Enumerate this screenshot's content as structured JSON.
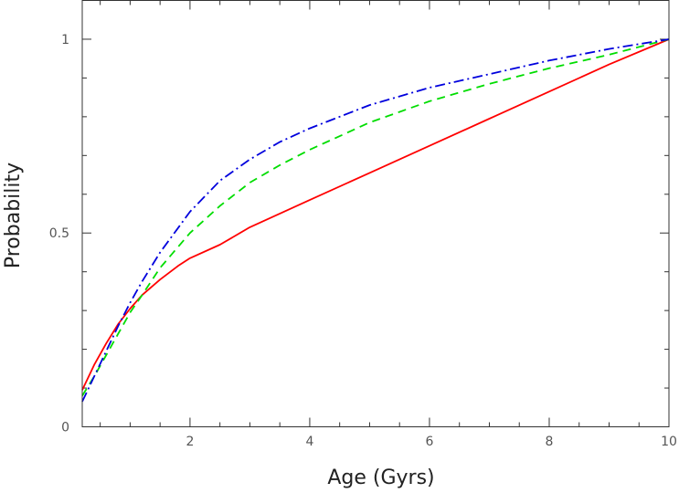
{
  "chart_data": {
    "type": "line",
    "title": "",
    "xlabel": "Age (Gyrs)",
    "ylabel": "Probability",
    "xlim": [
      0.2,
      10
    ],
    "ylim": [
      0,
      1.1
    ],
    "x_ticks": [
      2,
      4,
      6,
      8,
      10
    ],
    "x_tick_labels": [
      "2",
      "4",
      "6",
      "8",
      "10"
    ],
    "x_minor_step": 0.5,
    "y_ticks": [
      0,
      0.5,
      1
    ],
    "y_tick_labels": [
      "0",
      "0.5",
      "1"
    ],
    "y_minor_step": 0.1,
    "grid": false,
    "legend": "none",
    "series": [
      {
        "color": "#ff0000",
        "style": "solid",
        "x": [
          0.2,
          0.4,
          0.6,
          0.8,
          1.0,
          1.2,
          1.5,
          1.8,
          2.0,
          2.5,
          3.0,
          4.0,
          5.0,
          6.0,
          7.0,
          8.0,
          9.0,
          10.0
        ],
        "y": [
          0.095,
          0.16,
          0.215,
          0.265,
          0.305,
          0.34,
          0.38,
          0.415,
          0.435,
          0.47,
          0.515,
          0.585,
          0.655,
          0.725,
          0.795,
          0.865,
          0.935,
          1.0
        ]
      },
      {
        "color": "#00dd00",
        "style": "dashed",
        "x": [
          0.2,
          0.4,
          0.6,
          0.8,
          1.0,
          1.2,
          1.5,
          2.0,
          2.5,
          3.0,
          3.5,
          4.0,
          5.0,
          6.0,
          7.0,
          8.0,
          9.0,
          10.0
        ],
        "y": [
          0.08,
          0.13,
          0.185,
          0.24,
          0.295,
          0.34,
          0.41,
          0.5,
          0.57,
          0.63,
          0.675,
          0.715,
          0.785,
          0.84,
          0.885,
          0.925,
          0.96,
          1.0
        ]
      },
      {
        "color": "#0000dd",
        "style": "dashdot",
        "x": [
          0.2,
          0.4,
          0.6,
          0.8,
          1.0,
          1.2,
          1.5,
          2.0,
          2.5,
          3.0,
          3.5,
          4.0,
          5.0,
          6.0,
          7.0,
          8.0,
          9.0,
          10.0
        ],
        "y": [
          0.065,
          0.13,
          0.195,
          0.26,
          0.32,
          0.375,
          0.45,
          0.555,
          0.635,
          0.69,
          0.735,
          0.77,
          0.83,
          0.875,
          0.91,
          0.945,
          0.975,
          1.0
        ]
      }
    ]
  }
}
